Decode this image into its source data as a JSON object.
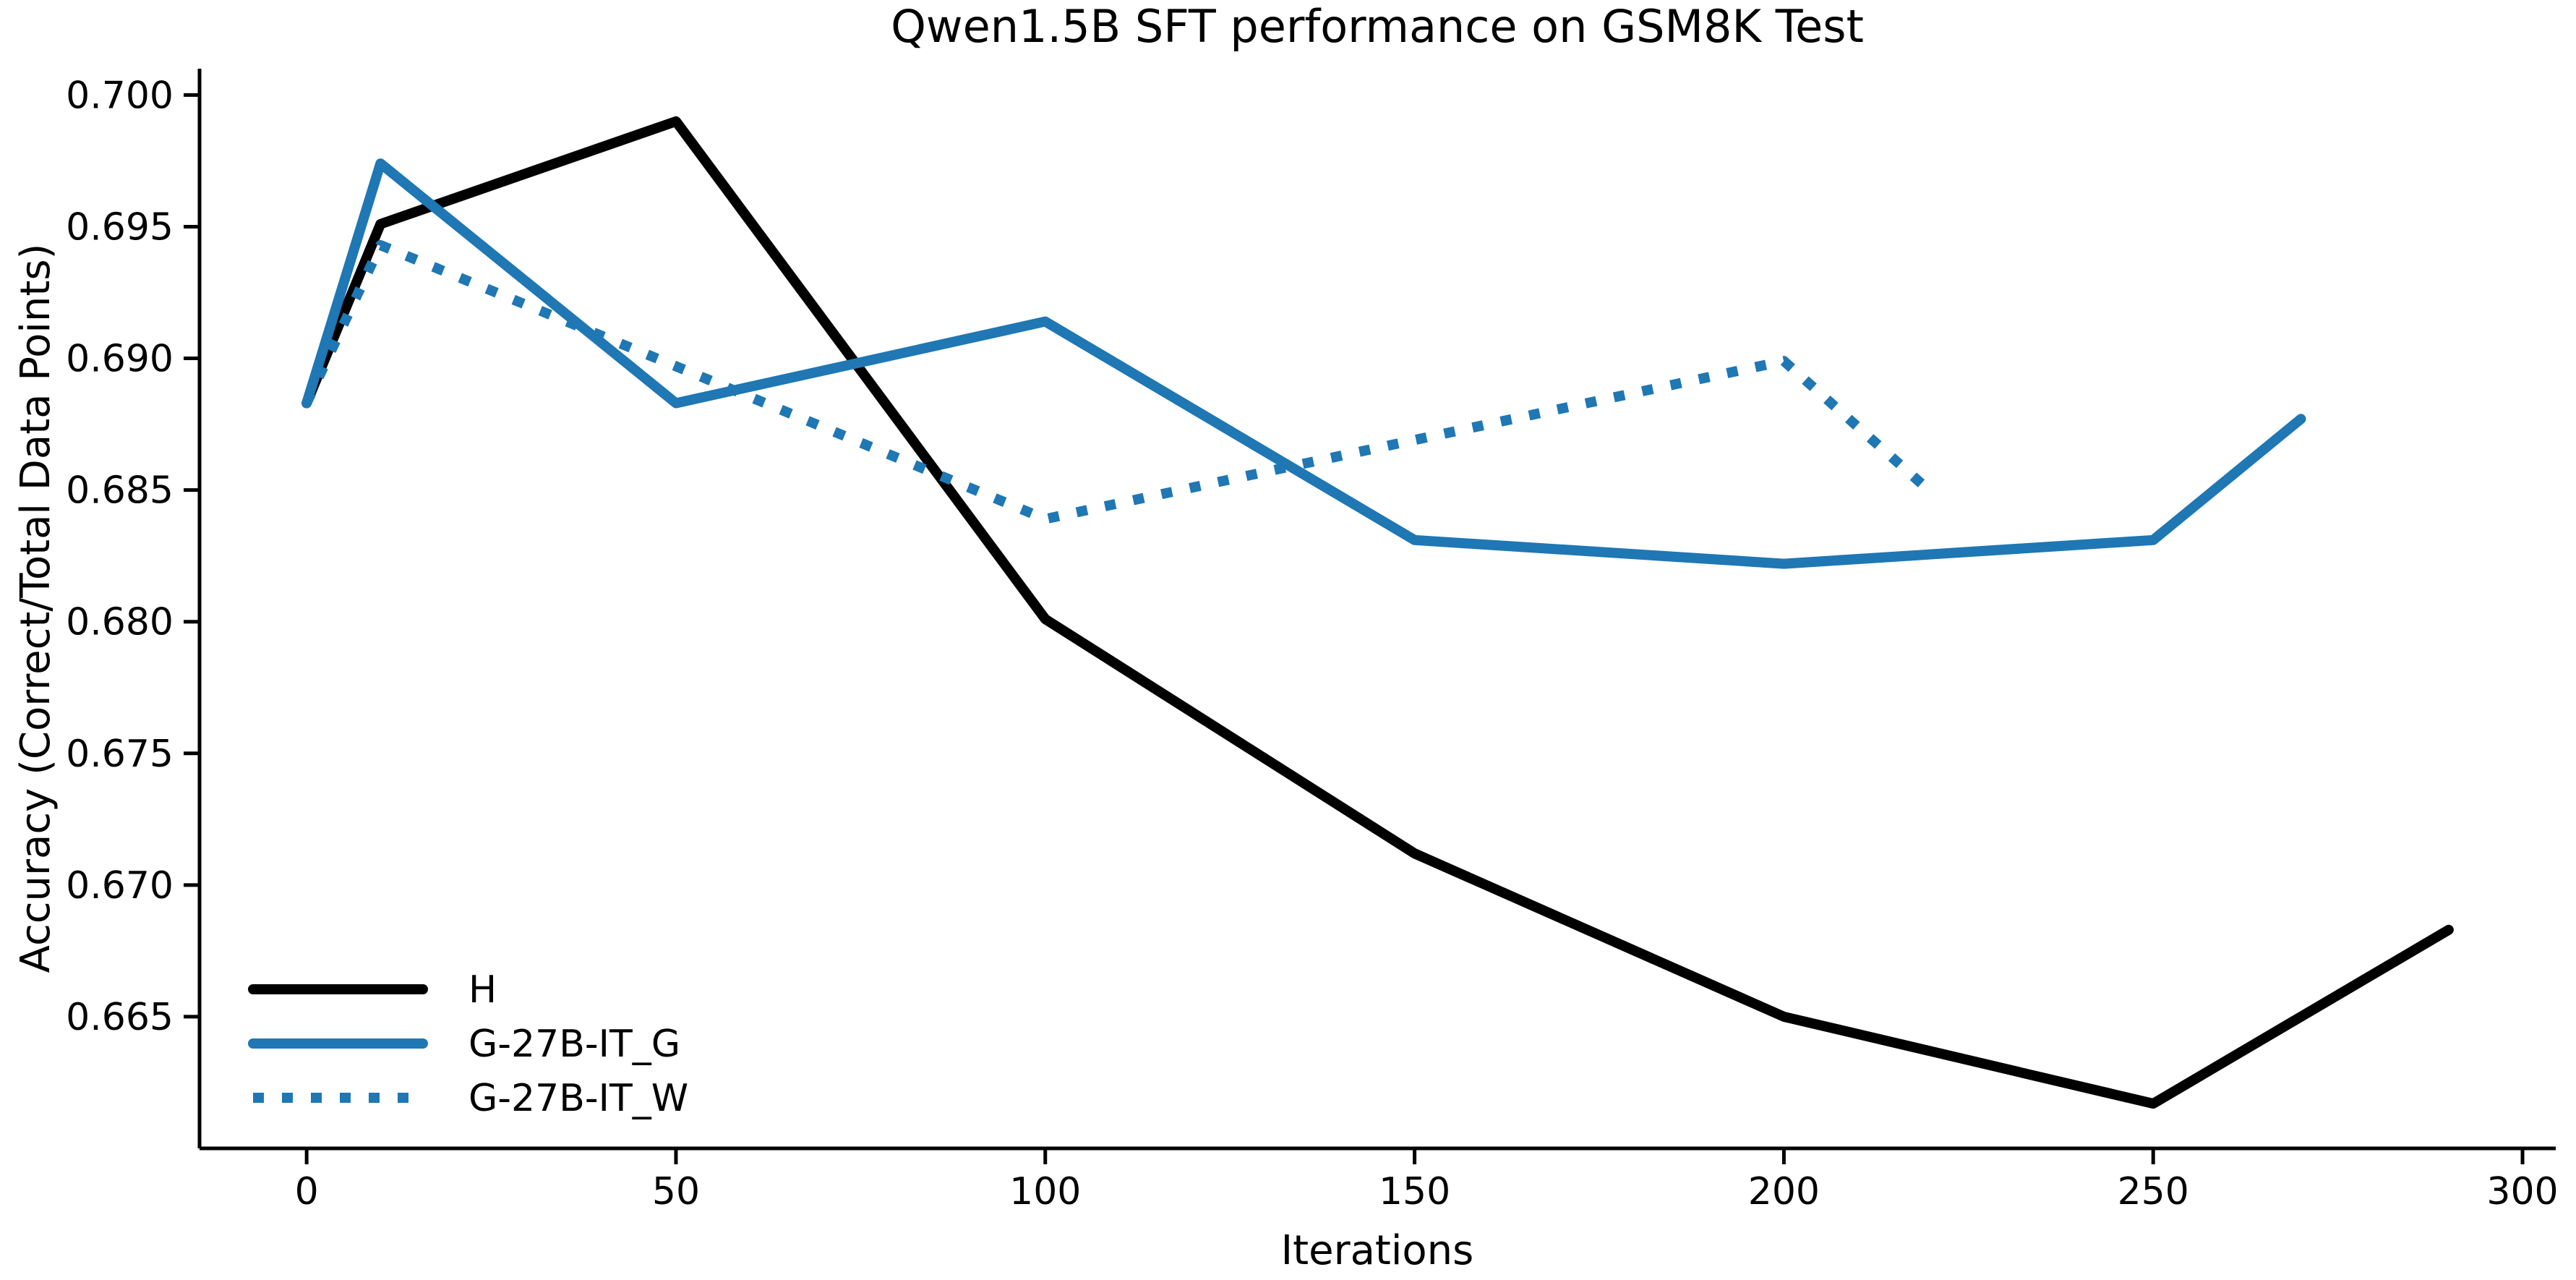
{
  "chart_data": {
    "type": "line",
    "title": "Qwen1.5B SFT performance on GSM8K Test",
    "xlabel": "Iterations",
    "ylabel": "Accuracy (Correct/Total Data Points)",
    "xlim": [
      -14.5,
      304.5
    ],
    "ylim": [
      0.66,
      0.701
    ],
    "xticks": [
      0,
      50,
      100,
      150,
      200,
      250,
      300
    ],
    "yticks": [
      0.665,
      0.67,
      0.675,
      0.68,
      0.685,
      0.69,
      0.695,
      0.7
    ],
    "grid": false,
    "legend_position": "lower left",
    "colors": {
      "black_series": "#000000",
      "blue_series": "#1f77b4"
    },
    "series": [
      {
        "name": "H",
        "color": "#000000",
        "style": "solid",
        "x": [
          0,
          10,
          50,
          100,
          150,
          200,
          250,
          290
        ],
        "y": [
          0.6883,
          0.6951,
          0.699,
          0.6801,
          0.6712,
          0.665,
          0.6617,
          0.6683
        ]
      },
      {
        "name": "G-27B-IT_G",
        "color": "#1f77b4",
        "style": "solid",
        "x": [
          0,
          10,
          50,
          100,
          150,
          200,
          250,
          270
        ],
        "y": [
          0.6883,
          0.6974,
          0.6883,
          0.6914,
          0.6831,
          0.6822,
          0.6831,
          0.6877
        ]
      },
      {
        "name": "G-27B-IT_W",
        "color": "#1f77b4",
        "style": "dotted",
        "x": [
          0,
          10,
          50,
          100,
          150,
          200,
          220
        ],
        "y": [
          0.6883,
          0.6943,
          0.6897,
          0.6839,
          0.6869,
          0.6899,
          0.6849
        ]
      }
    ]
  }
}
